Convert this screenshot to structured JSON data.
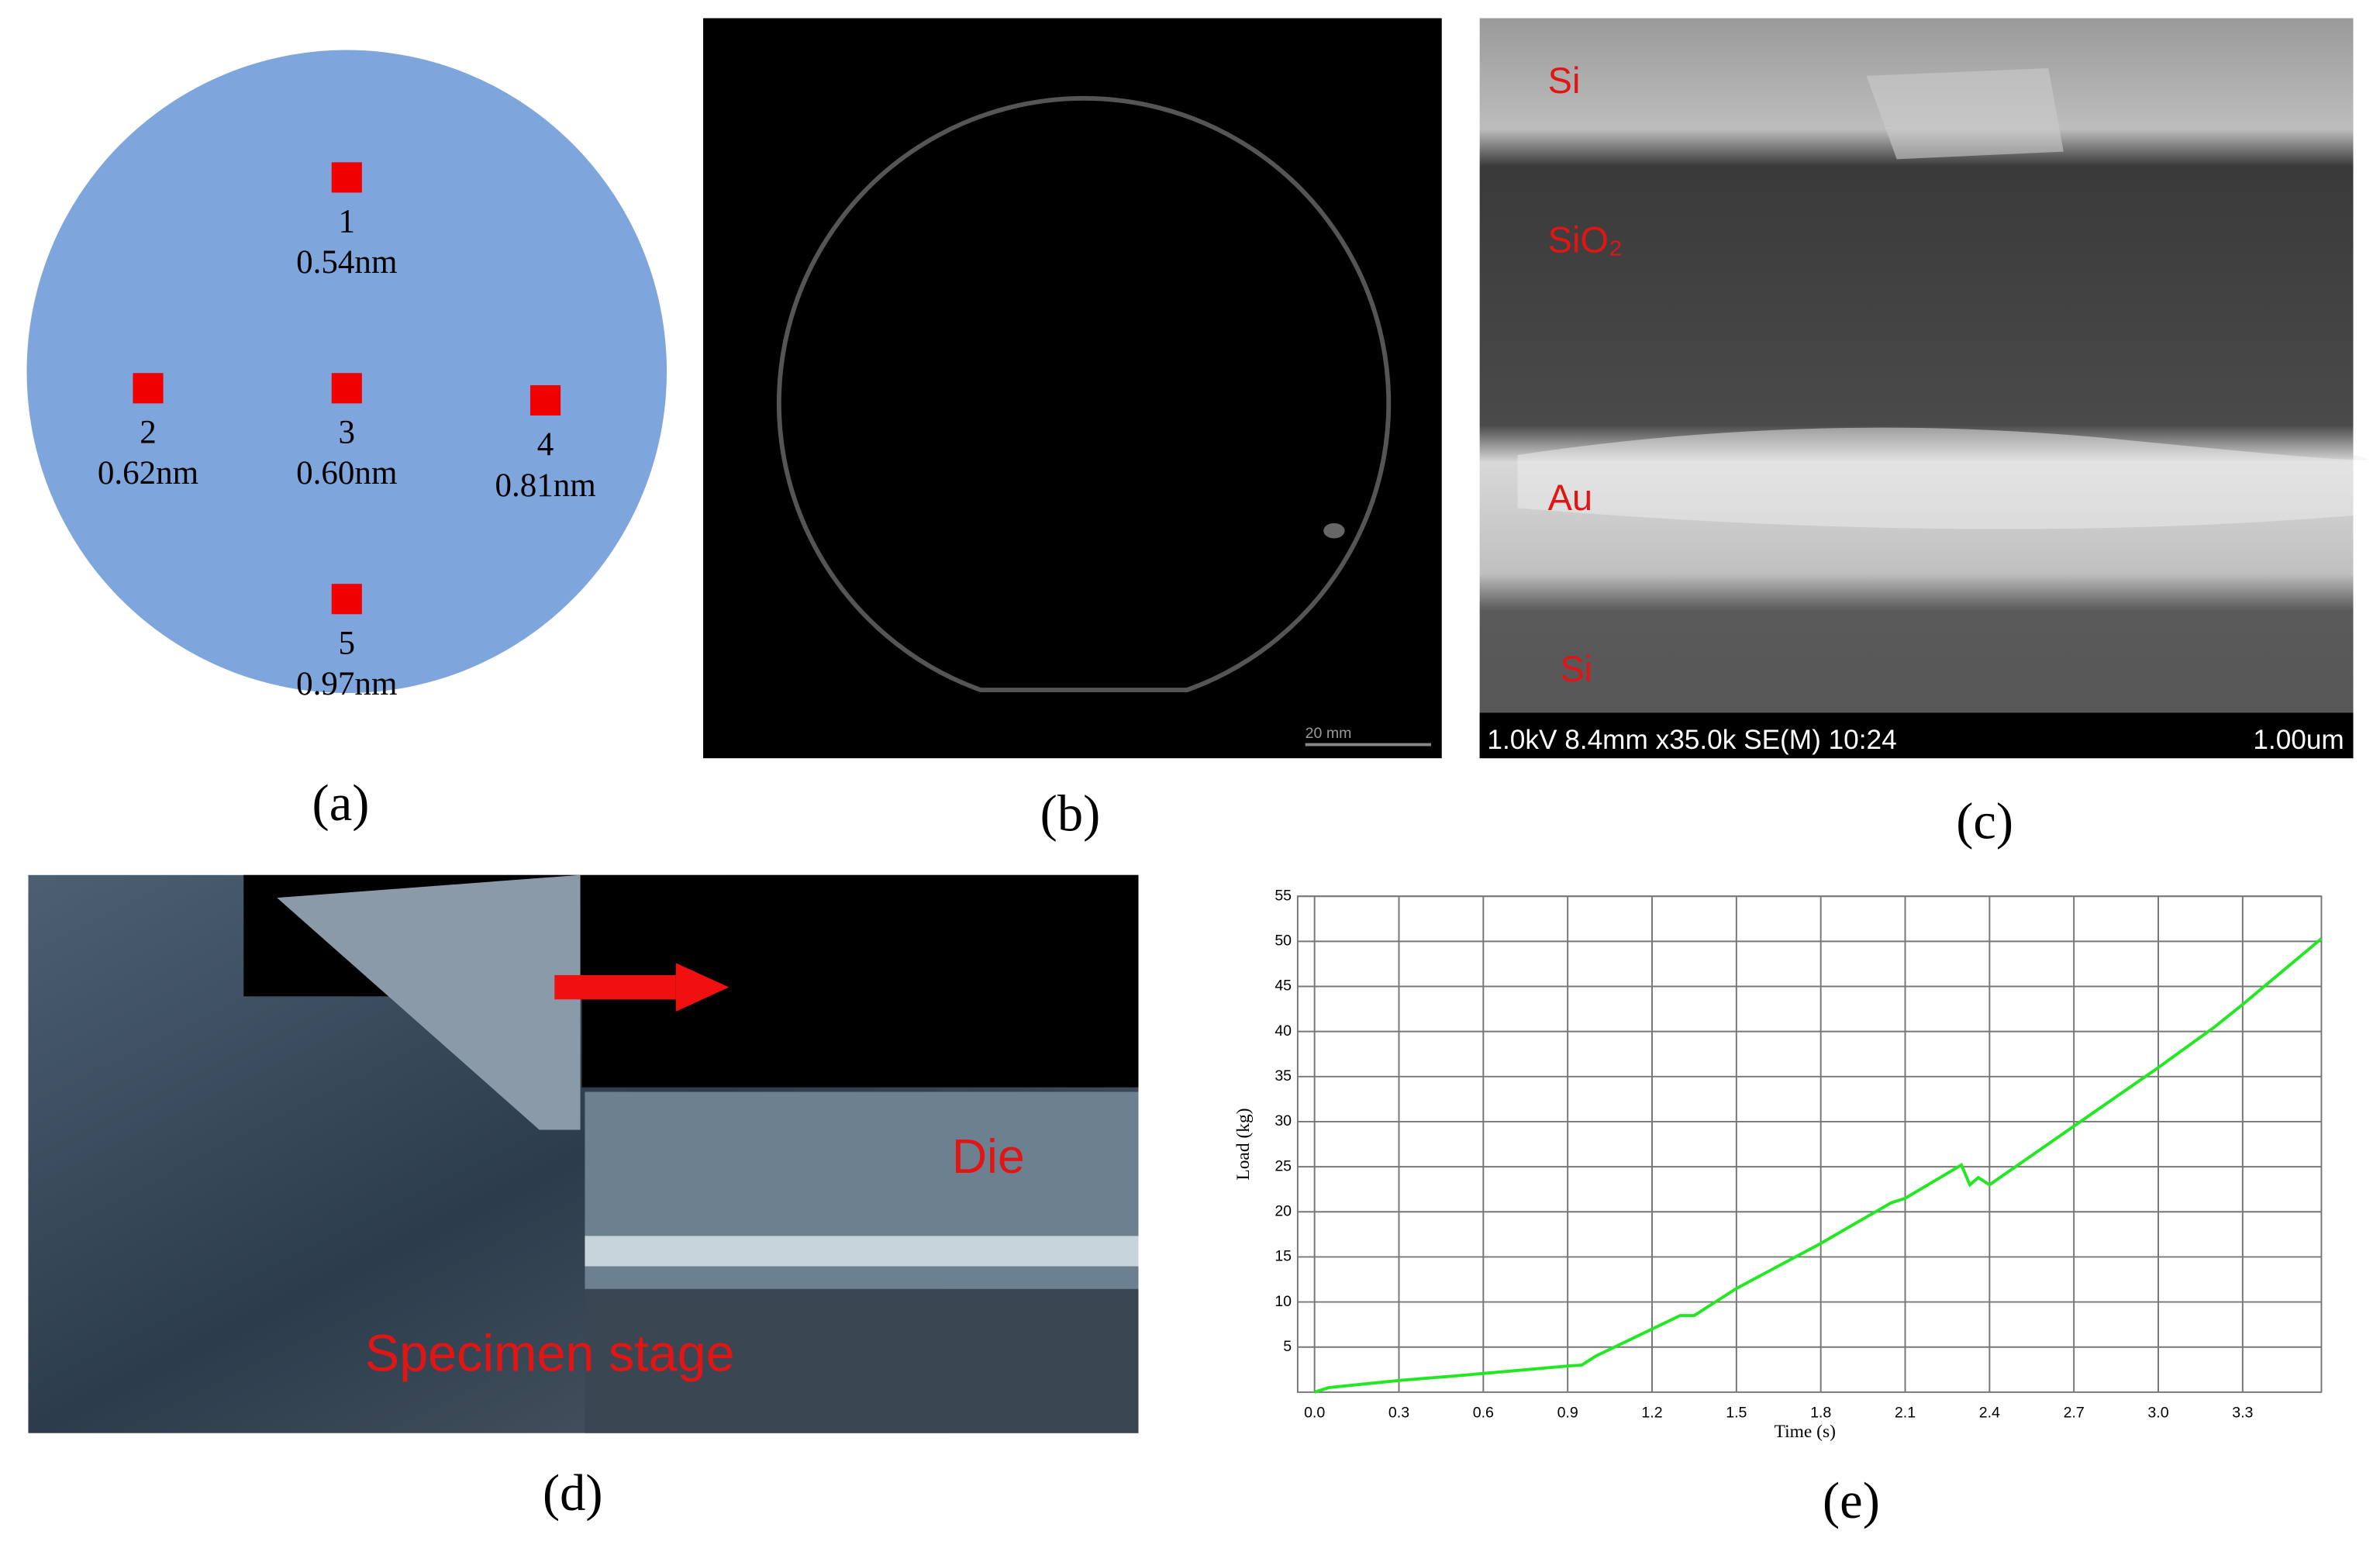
{
  "panels": {
    "a": {
      "caption": "(a)",
      "points": [
        {
          "label": "1",
          "value": "0.54nm"
        },
        {
          "label": "2",
          "value": "0.62nm"
        },
        {
          "label": "3",
          "value": "0.60nm"
        },
        {
          "label": "4",
          "value": "0.81nm"
        },
        {
          "label": "5",
          "value": "0.97nm"
        }
      ]
    },
    "b": {
      "caption": "(b)",
      "scale_bar": "20 mm"
    },
    "c": {
      "caption": "(c)",
      "layers": [
        "Si",
        "SiO₂",
        "Au",
        "Si"
      ],
      "info": "1.0kV 8.4mm x35.0k SE(M) 10:24",
      "scale": "1.00um"
    },
    "d": {
      "caption": "(d)",
      "labels": [
        "Die",
        "Specimen stage"
      ]
    },
    "e": {
      "caption": "(e)"
    }
  },
  "chart_data": {
    "type": "line",
    "x_label": "Time (s)",
    "y_label": "Load (kg)",
    "xlim": [
      -0.06,
      3.58
    ],
    "ylim": [
      0,
      55
    ],
    "xticks": [
      {
        "value": 0,
        "label": "0.0"
      },
      0.3,
      0.6,
      0.9,
      1.2,
      1.5,
      1.8,
      2.1,
      2.4,
      2.7,
      {
        "value": 3,
        "label": "3.0"
      },
      3.3
    ],
    "yticks": [
      5,
      10,
      15,
      20,
      25,
      30,
      35,
      40,
      45,
      50,
      55
    ],
    "grid": true,
    "x": [
      0,
      0.05,
      0.3,
      0.5,
      0.9,
      0.95,
      1.0,
      1.2,
      1.3,
      1.35,
      1.5,
      1.8,
      2.05,
      2.1,
      2.3,
      2.33,
      2.36,
      2.4,
      2.7,
      3.0,
      3.2,
      3.3,
      3.58
    ],
    "series": [
      {
        "color": "#22e822",
        "values": [
          0,
          0.5,
          1.3,
          1.8,
          2.9,
          3,
          4,
          7,
          8.5,
          8.5,
          11.5,
          16.5,
          21,
          21.5,
          25.2,
          23,
          23.8,
          23,
          29.5,
          36,
          40.5,
          43,
          50.3
        ]
      }
    ]
  }
}
